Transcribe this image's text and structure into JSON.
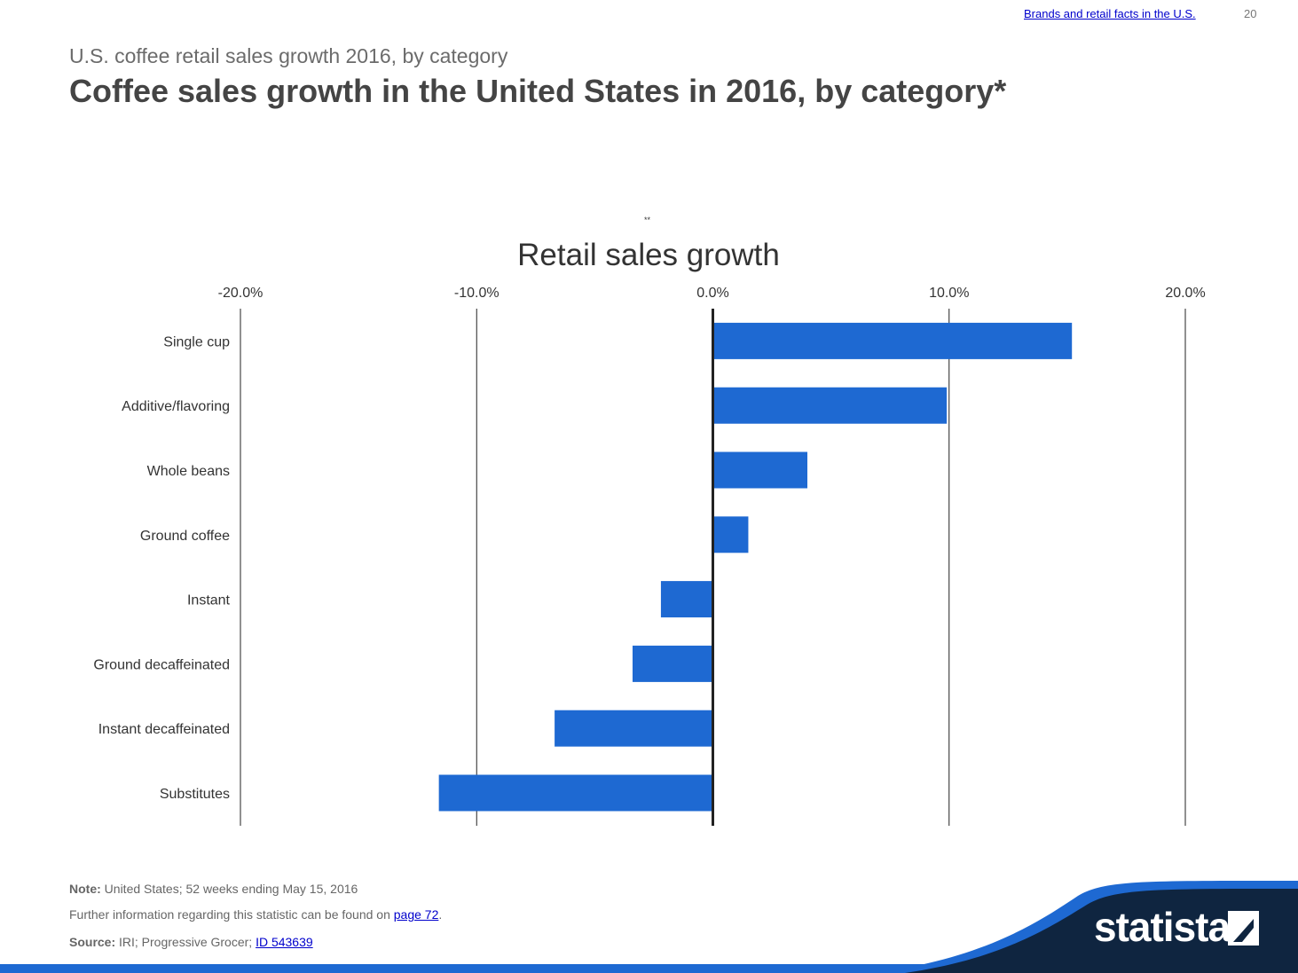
{
  "header": {
    "link": "Brands and retail facts in the U.S.",
    "page_number": "20",
    "subtitle": "U.S. coffee retail sales growth 2016, by category",
    "title": "Coffee sales growth in the United States in 2016, by category*",
    "mark": "**"
  },
  "chart_data": {
    "type": "bar",
    "orientation": "horizontal",
    "title": "Retail sales growth",
    "categories": [
      "Single cup",
      "Additive/flavoring",
      "Whole beans",
      "Ground coffee",
      "Instant",
      "Ground decaffeinated",
      "Instant decaffeinated",
      "Substitutes"
    ],
    "values": [
      15.2,
      9.9,
      4.0,
      1.5,
      -2.2,
      -3.4,
      -6.7,
      -11.6
    ],
    "unit": "%",
    "xlim": [
      -20,
      20
    ],
    "ticks": [
      "-20.0%",
      "-10.0%",
      "0.0%",
      "10.0%",
      "20.0%"
    ],
    "tick_values": [
      -20,
      -10,
      0,
      10,
      20
    ],
    "grid": true,
    "bar_color": "#1e69d2",
    "axis_position": "top"
  },
  "footer": {
    "note_label": "Note:",
    "note_text": "United States; 52 weeks ending May 15, 2016",
    "info_text": "Further information regarding this statistic can be found on",
    "info_link": "page 72",
    "info_end": ".",
    "source_label": "Source:",
    "source_text": "IRI; Progressive Grocer;",
    "source_link": "ID 543639"
  },
  "brand": {
    "logo": "statista",
    "logo_icon": "statista-mark-icon",
    "dark_color": "#0f2540",
    "accent_color": "#1e69d2"
  }
}
